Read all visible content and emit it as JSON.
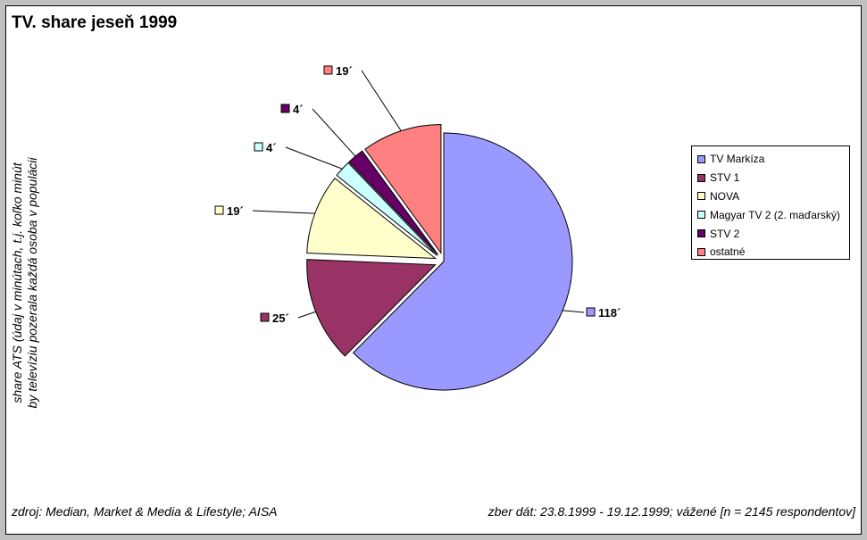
{
  "chart_data": {
    "type": "pie",
    "title": "TV. share jeseň 1999",
    "ylabel": [
      "share ATS (údaj v minútach, t.j. koľko minút",
      "by televíziu pozerala každá osoba v populácii"
    ],
    "slices": [
      {
        "name": "TV Markíza",
        "value": 118,
        "label": "118´",
        "color": "#9999ff",
        "exploded": false
      },
      {
        "name": "STV 1",
        "value": 25,
        "label": "25´",
        "color": "#993366",
        "exploded": true
      },
      {
        "name": "NOVA",
        "value": 19,
        "label": "19´",
        "color": "#ffffcc",
        "exploded": true
      },
      {
        "name": "Magyar TV 2 (2. maďarský)",
        "value": 4,
        "label": "4´",
        "color": "#ccffff",
        "exploded": true
      },
      {
        "name": "STV 2",
        "value": 4,
        "label": "4´",
        "color": "#660066",
        "exploded": true
      },
      {
        "name": "ostatné",
        "value": 19,
        "label": "19´",
        "color": "#ff8080",
        "exploded": true
      }
    ],
    "legend_position": "right"
  },
  "footer": {
    "source": "zdroj: Median, Market & Media & Lifestyle; AISA",
    "period": "zber dát: 23.8.1999 - 19.12.1999; vážené [n = 2145 respondentov]"
  }
}
